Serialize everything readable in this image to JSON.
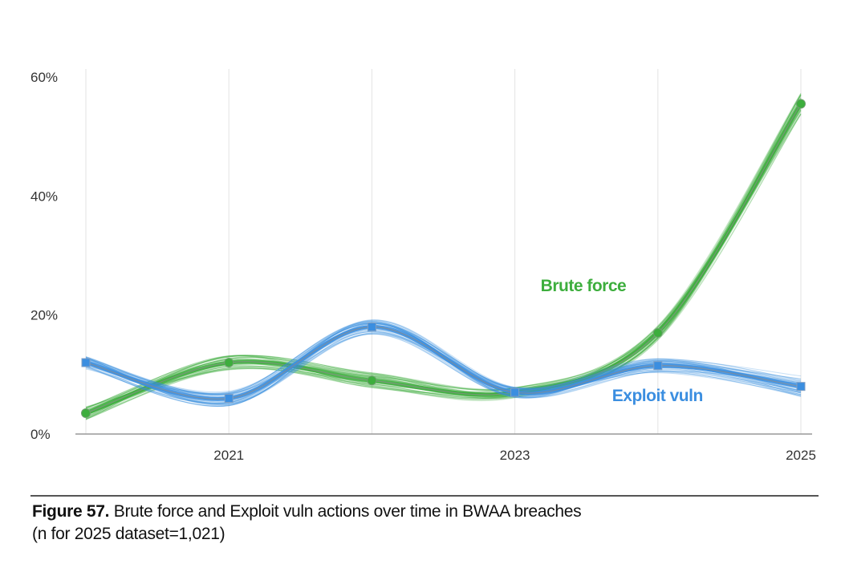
{
  "chart_data": {
    "type": "line",
    "x": [
      2020,
      2021,
      2022,
      2023,
      2024,
      2025
    ],
    "xtick_labels": [
      "2021",
      "2023",
      "2025"
    ],
    "xtick_values": [
      2021,
      2023,
      2025
    ],
    "ytick_labels": [
      "0%",
      "20%",
      "40%",
      "60%"
    ],
    "ytick_values": [
      0,
      20,
      40,
      60
    ],
    "ylim": [
      0,
      60
    ],
    "xlim": [
      2020,
      2025
    ],
    "grid": "vertical",
    "series": [
      {
        "name": "Brute force",
        "values": [
          3.5,
          12,
          9,
          7,
          17,
          55.5
        ],
        "color": "#3DAE3D",
        "marker": "circle"
      },
      {
        "name": "Exploit vuln",
        "values": [
          12,
          6,
          18,
          7,
          11.5,
          8
        ],
        "color": "#3B8EE0",
        "marker": "square"
      }
    ]
  },
  "caption": {
    "figure_label": "Figure 57.",
    "text": " Brute force and Exploit vuln actions over time in BWAA breaches",
    "note": "(n for 2025 dataset=1,021)"
  }
}
